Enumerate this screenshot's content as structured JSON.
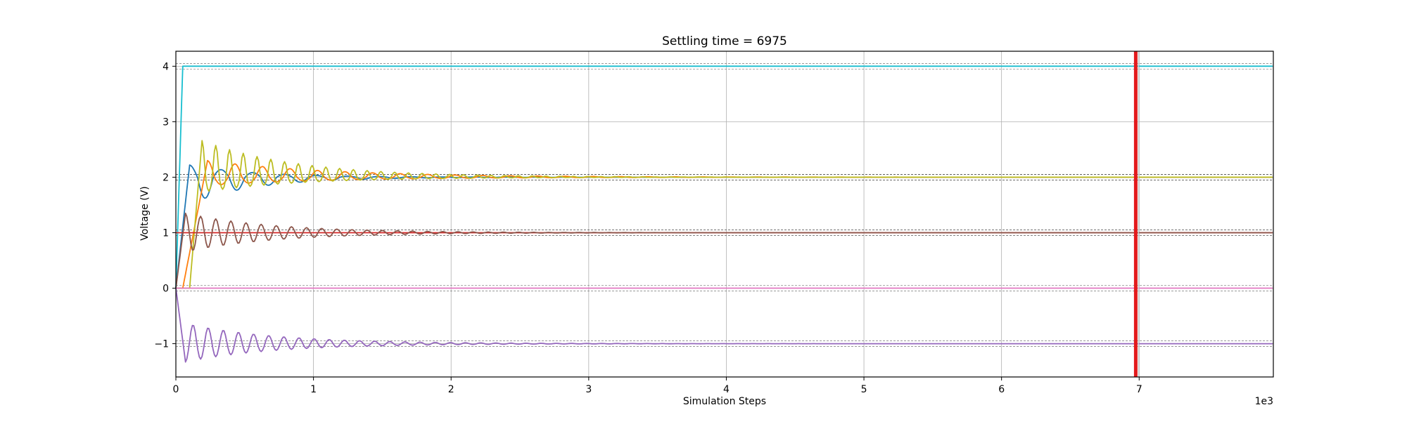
{
  "chart_data": {
    "type": "line",
    "title": "Settling time = 6975",
    "xlabel": "Simulation Steps",
    "ylabel": "Voltage (V)",
    "x_offset_label": "1e3",
    "xlim": [
      0,
      7975
    ],
    "ylim": [
      -1.6,
      4.27
    ],
    "x_scale_factor": 1000,
    "xticks": [
      0,
      1000,
      2000,
      3000,
      4000,
      5000,
      6000,
      7000
    ],
    "xtick_labels": [
      "0",
      "1",
      "2",
      "3",
      "4",
      "5",
      "6",
      "7"
    ],
    "yticks": [
      -1,
      0,
      1,
      2,
      3,
      4
    ],
    "ytick_labels": [
      "−1",
      "0",
      "1",
      "2",
      "3",
      "4"
    ],
    "grid": true,
    "settling_time": 6975,
    "settling_line_color": "#e31a1c",
    "tolerance": 0.05,
    "series": [
      {
        "color": "#17becf",
        "target": 4,
        "kind": "step",
        "rise_end": 50
      },
      {
        "color": "#1f77b4",
        "target": 2,
        "kind": "oscillate",
        "start": 0,
        "v0": 0,
        "peak": 2.22,
        "peak_at": 100,
        "undershoot": 1.52,
        "period": 230,
        "decay": 480,
        "damp_start": 500
      },
      {
        "color": "#ff7f0e",
        "target": 2,
        "kind": "oscillate",
        "start": 50,
        "v0": 0,
        "peak": 2.3,
        "peak_at": 230,
        "undershoot": 1.85,
        "period": 200,
        "decay": 900,
        "damp_start": 300
      },
      {
        "color": "#bcbd22",
        "target": 2,
        "kind": "oscillate",
        "start": 100,
        "v0": 0,
        "peak": 2.66,
        "peak_at": 190,
        "undershoot": 1.73,
        "period": 100,
        "decay": 700,
        "damp_start": 250
      },
      {
        "color": "#d62728",
        "target": 1,
        "kind": "flat_settle",
        "v0": 1
      },
      {
        "color": "#8c564b",
        "target": 1,
        "kind": "oscillate",
        "start": 0,
        "v0": 0,
        "peak": 1.35,
        "peak_at": 70,
        "undershoot": 0.65,
        "period": 110,
        "decay": 650,
        "damp_start": 300
      },
      {
        "color": "#e377c2",
        "target": 0,
        "kind": "flat",
        "v0": 0
      },
      {
        "color": "#9467bd",
        "target": -1,
        "kind": "oscillate",
        "start": 0,
        "v0": 0,
        "peak": -1.33,
        "peak_at": 70,
        "undershoot": -0.63,
        "period": 110,
        "decay": 650,
        "damp_start": 300
      }
    ]
  }
}
